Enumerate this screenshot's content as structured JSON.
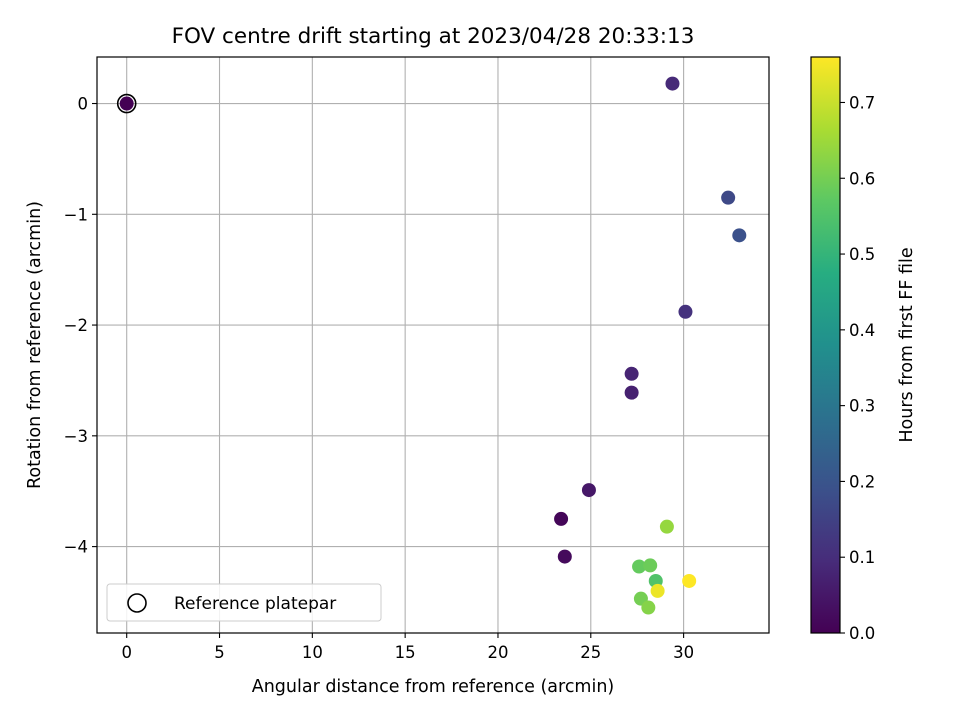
{
  "chart_data": {
    "type": "scatter",
    "title": "FOV centre drift starting at 2023/04/28 20:33:13",
    "xlabel": "Angular distance from reference (arcmin)",
    "ylabel": "Rotation from reference (arcmin)",
    "xlim": [
      -1.6,
      34.6
    ],
    "ylim": [
      -4.78,
      0.42
    ],
    "xticks": [
      0,
      5,
      10,
      15,
      20,
      25,
      30
    ],
    "yticks": [
      0,
      -1,
      -2,
      -3,
      -4
    ],
    "ytick_labels": [
      "0",
      "−1",
      "−2",
      "−3",
      "−4"
    ],
    "grid": true,
    "colorbar": {
      "label": "Hours from first FF file",
      "colormap": "viridis",
      "range": [
        0.0,
        0.76
      ],
      "ticks": [
        0.0,
        0.1,
        0.2,
        0.3,
        0.4,
        0.5,
        0.6,
        0.7
      ],
      "tick_labels": [
        "0.0",
        "0.1",
        "0.2",
        "0.3",
        "0.4",
        "0.5",
        "0.6",
        "0.7"
      ]
    },
    "legend": {
      "placement": "lower-left",
      "entries": [
        {
          "label": "Reference platepar",
          "marker": "open-circle"
        }
      ]
    },
    "reference_point": {
      "x": 0,
      "y": 0
    },
    "points": [
      {
        "x": 0.0,
        "y": 0.0,
        "c": 0.0
      },
      {
        "x": 23.4,
        "y": -3.75,
        "c": 0.01
      },
      {
        "x": 23.6,
        "y": -4.09,
        "c": 0.02
      },
      {
        "x": 24.9,
        "y": -3.49,
        "c": 0.05
      },
      {
        "x": 27.2,
        "y": -2.61,
        "c": 0.07
      },
      {
        "x": 27.2,
        "y": -2.44,
        "c": 0.08
      },
      {
        "x": 29.4,
        "y": 0.18,
        "c": 0.09
      },
      {
        "x": 30.1,
        "y": -1.88,
        "c": 0.11
      },
      {
        "x": 32.4,
        "y": -0.85,
        "c": 0.17
      },
      {
        "x": 33.0,
        "y": -1.19,
        "c": 0.19
      },
      {
        "x": 28.5,
        "y": -4.31,
        "c": 0.55
      },
      {
        "x": 27.6,
        "y": -4.18,
        "c": 0.58
      },
      {
        "x": 28.2,
        "y": -4.17,
        "c": 0.59
      },
      {
        "x": 27.7,
        "y": -4.47,
        "c": 0.6
      },
      {
        "x": 28.1,
        "y": -4.55,
        "c": 0.62
      },
      {
        "x": 29.1,
        "y": -3.82,
        "c": 0.64
      },
      {
        "x": 28.6,
        "y": -4.4,
        "c": 0.74
      },
      {
        "x": 30.3,
        "y": -4.31,
        "c": 0.76
      }
    ]
  }
}
